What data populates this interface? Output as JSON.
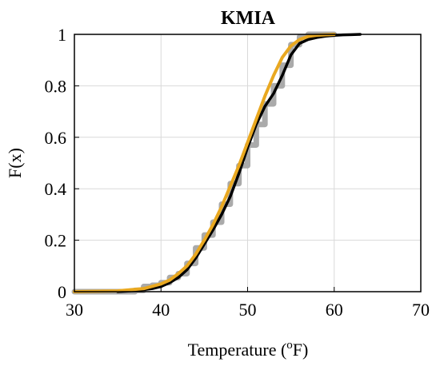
{
  "chart_data": {
    "type": "line",
    "title": "KMIA",
    "xlabel_main": "Temperature (",
    "xlabel_sup": "o",
    "xlabel_end": "F)",
    "ylabel": "F(x)",
    "xlim": [
      30,
      70
    ],
    "ylim": [
      0,
      1
    ],
    "x_ticks": [
      "30",
      "40",
      "50",
      "60",
      "70"
    ],
    "y_ticks": [
      "0",
      "0.2",
      "0.4",
      "0.6",
      "0.8",
      "1"
    ],
    "grid": true,
    "colors": {
      "empirical_step": "#aaaaaa",
      "cdf_black": "#000000",
      "cdf_orange": "#e9a820"
    },
    "series": [
      {
        "style": "step",
        "color": "#aaaaaa",
        "x": [
          30,
          37,
          38,
          39,
          40,
          41,
          42,
          43,
          44,
          45,
          46,
          47,
          48,
          49,
          50,
          51,
          52,
          53,
          54,
          55,
          56,
          57,
          60
        ],
        "y": [
          0,
          0.005,
          0.02,
          0.025,
          0.035,
          0.055,
          0.07,
          0.11,
          0.17,
          0.22,
          0.27,
          0.34,
          0.42,
          0.49,
          0.57,
          0.65,
          0.73,
          0.8,
          0.88,
          0.96,
          0.99,
          1,
          1
        ]
      },
      {
        "style": "line",
        "color": "#000000",
        "x": [
          35,
          37,
          39,
          40,
          41,
          42,
          43,
          44,
          45,
          46,
          47,
          48,
          49,
          50,
          51,
          52,
          53,
          54,
          55,
          56,
          57,
          58,
          59,
          60,
          61,
          62,
          63
        ],
        "y": [
          0,
          0.004,
          0.012,
          0.02,
          0.035,
          0.055,
          0.085,
          0.13,
          0.185,
          0.24,
          0.3,
          0.37,
          0.46,
          0.56,
          0.65,
          0.72,
          0.77,
          0.84,
          0.92,
          0.965,
          0.98,
          0.988,
          0.993,
          0.996,
          0.998,
          0.999,
          1.0
        ]
      },
      {
        "style": "line",
        "color": "#e9a820",
        "x": [
          30,
          35,
          38,
          40,
          41,
          42,
          43,
          44,
          45,
          46,
          47,
          48,
          49,
          50,
          51,
          52,
          53,
          54,
          55,
          56,
          57,
          58,
          60
        ],
        "y": [
          0,
          0.003,
          0.012,
          0.03,
          0.045,
          0.07,
          0.1,
          0.145,
          0.2,
          0.26,
          0.33,
          0.41,
          0.49,
          0.58,
          0.67,
          0.76,
          0.84,
          0.91,
          0.955,
          0.98,
          0.992,
          0.997,
          1.0
        ]
      }
    ]
  }
}
